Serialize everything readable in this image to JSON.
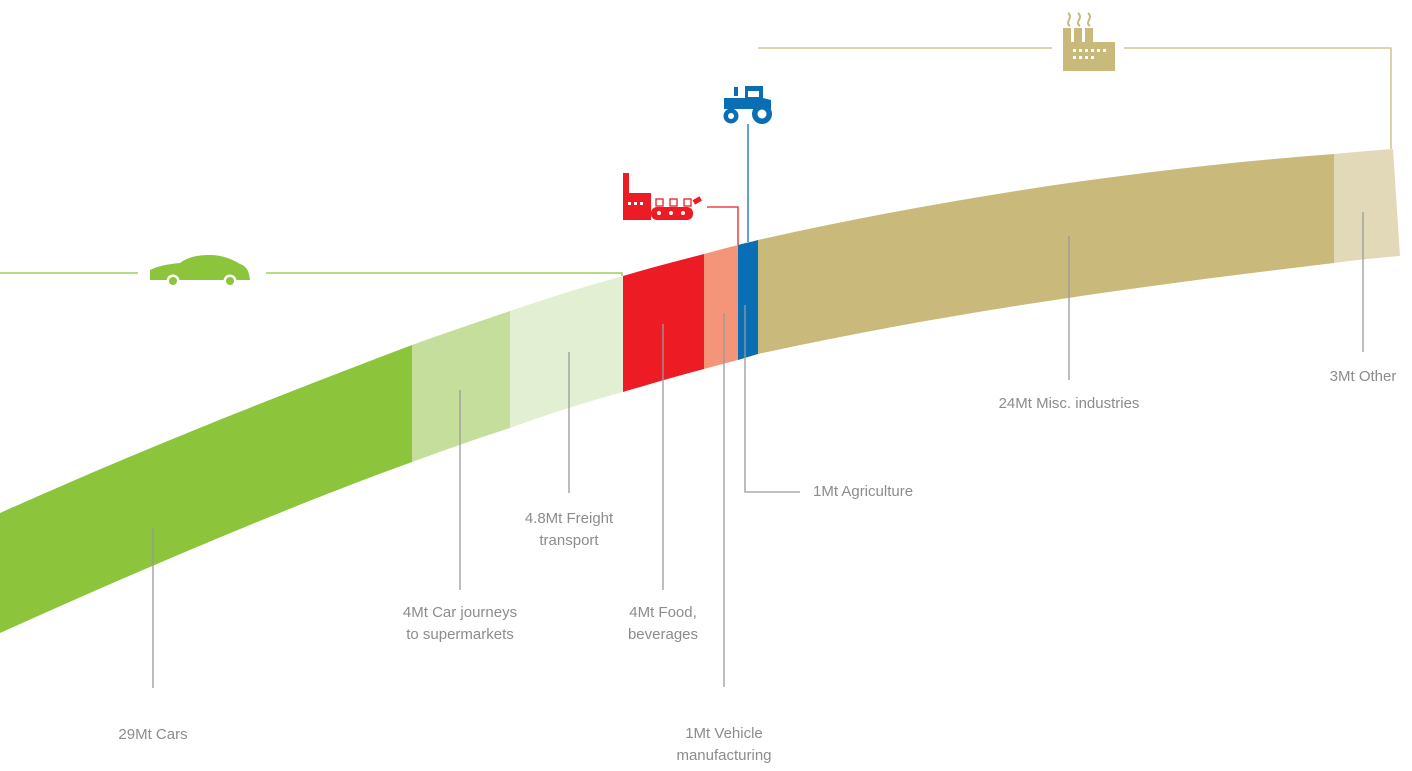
{
  "colors": {
    "cars": "#8CC43C",
    "car_journeys": "#C6DE9C",
    "freight": "#E3EFD2",
    "food": "#ED1C24",
    "vehicle_manufacturing": "#F4957A",
    "agriculture": "#0A6EB4",
    "misc_industries": "#C9BA7B",
    "other": "#E2D9B8",
    "leader_line": "#9a9a9a",
    "text": "#8c8c8c"
  },
  "segments": [
    {
      "id": "cars",
      "value": 29,
      "line1": "29Mt Cars",
      "line2": ""
    },
    {
      "id": "car_journeys",
      "value": 4,
      "line1": "4Mt Car journeys",
      "line2": "to supermarkets"
    },
    {
      "id": "freight",
      "value": 4.8,
      "line1": "4.8Mt Freight",
      "line2": "transport"
    },
    {
      "id": "food",
      "value": 4,
      "line1": "4Mt Food,",
      "line2": "beverages"
    },
    {
      "id": "vehicle_manufacturing",
      "value": 1,
      "line1": "1Mt Vehicle",
      "line2": "manufacturing"
    },
    {
      "id": "agriculture",
      "value": 1,
      "line1": "1Mt Agriculture",
      "line2": ""
    },
    {
      "id": "misc_industries",
      "value": 24,
      "line1": "24Mt Misc. industries",
      "line2": ""
    },
    {
      "id": "other",
      "value": 3,
      "line1": "3Mt Other",
      "line2": ""
    }
  ],
  "icons": {
    "transport": "car-icon",
    "food": "food-factory-icon",
    "agriculture": "tractor-icon",
    "industry": "factory-icon"
  }
}
